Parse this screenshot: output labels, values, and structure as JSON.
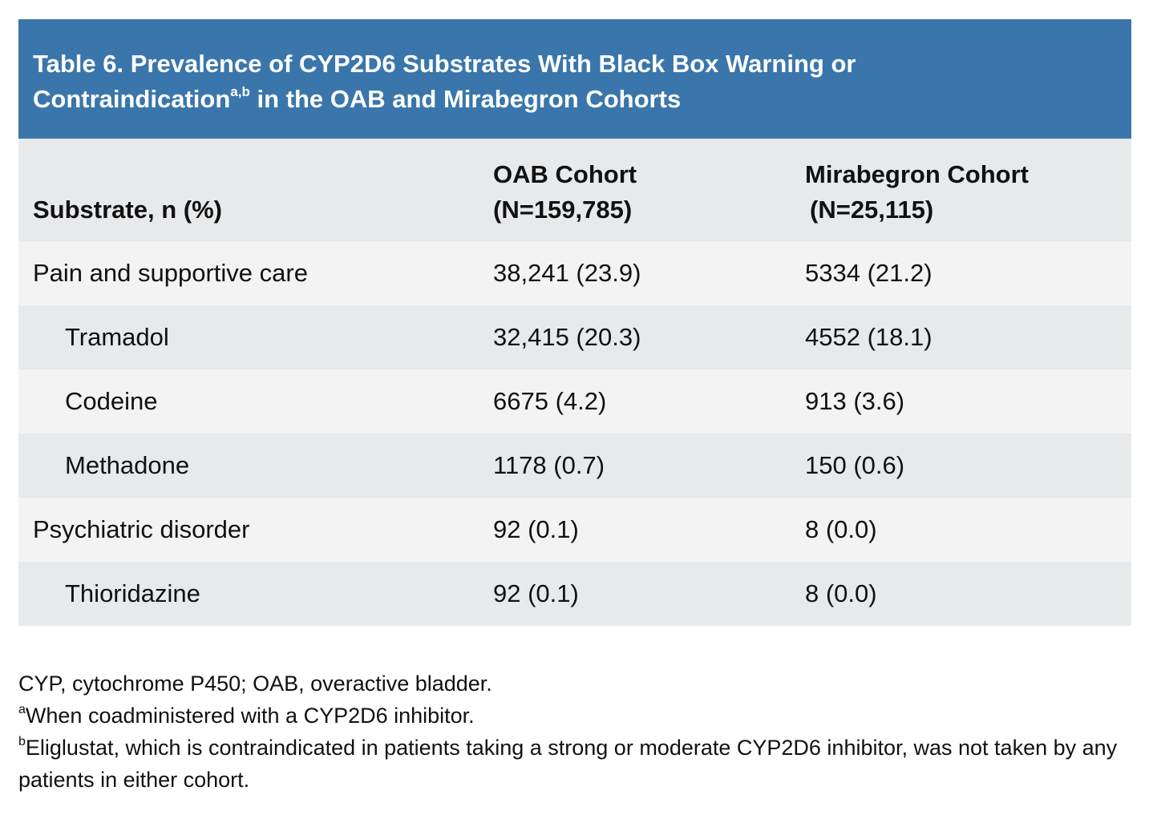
{
  "title": {
    "line1": "Table 6. Prevalence of CYP2D6 Substrates With Black Box Warning or",
    "line2_main": "Contraindication",
    "line2_sup": "a,b",
    "line2_rest": " in the OAB and Mirabegron Cohorts"
  },
  "header": {
    "substrate": "Substrate, n (%)",
    "oab_line1": "OAB Cohort",
    "oab_line2": "(N=159,785)",
    "mir_line1": "Mirabegron Cohort",
    "mir_line2": "(N=25,115)"
  },
  "rows": [
    {
      "substrate": "Pain and supportive care",
      "oab": "38,241 (23.9)",
      "mir": "5334 (21.2)"
    },
    {
      "substrate": "Tramadol",
      "oab": "32,415 (20.3)",
      "mir": "4552 (18.1)"
    },
    {
      "substrate": "Codeine",
      "oab": "6675 (4.2)",
      "mir": "913 (3.6)"
    },
    {
      "substrate": "Methadone",
      "oab": "1178 (0.7)",
      "mir": "150 (0.6)"
    },
    {
      "substrate": "Psychiatric disorder",
      "oab": "92 (0.1)",
      "mir": "8 (0.0)"
    },
    {
      "substrate": "Thioridazine",
      "oab": "92 (0.1)",
      "mir": "8 (0.0)"
    }
  ],
  "footnotes": {
    "abbrev": "CYP, cytochrome P450; OAB, overactive bladder.",
    "a_mark": "a",
    "a_text": "When coadministered with a CYP2D6 inhibitor.",
    "b_mark": "b",
    "b_text": "Eliglustat, which is contraindicated in patients taking a strong or moderate CYP2D6 inhibitor, was not taken by any patients in either cohort."
  }
}
